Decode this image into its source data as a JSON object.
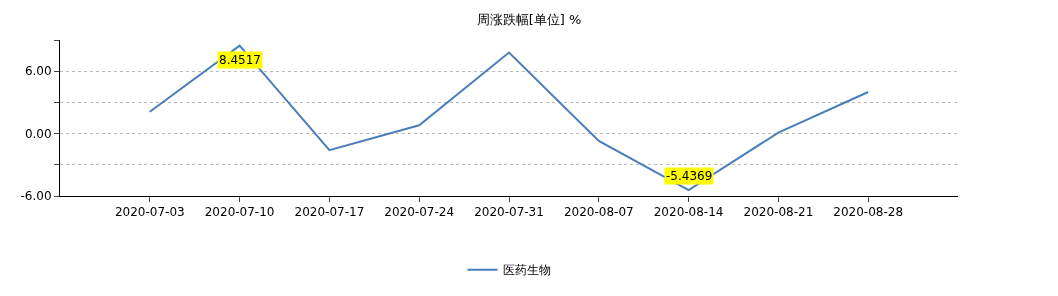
{
  "chart_data": {
    "type": "line",
    "title": "周涨跌幅[单位] %",
    "categories": [
      "2020-07-03",
      "2020-07-10",
      "2020-07-17",
      "2020-07-24",
      "2020-07-31",
      "2020-08-07",
      "2020-08-14",
      "2020-08-21",
      "2020-08-28"
    ],
    "series": [
      {
        "name": "医药生物",
        "color": "#4a7ebb",
        "values": [
          2.1,
          8.4517,
          -1.6,
          0.8,
          7.8,
          -0.7,
          -5.4369,
          0.1,
          4.0
        ],
        "value_labels": [
          null,
          "8.4517",
          null,
          null,
          null,
          null,
          "-5.4369",
          null,
          null
        ]
      }
    ],
    "ylim": [
      -6,
      9
    ],
    "yticks": [
      {
        "value": -6,
        "label": "-6.00"
      },
      {
        "value": -3,
        "label": null
      },
      {
        "value": 0,
        "label": "0.00"
      },
      {
        "value": 3,
        "label": null
      },
      {
        "value": 6,
        "label": "6.00"
      },
      {
        "value": 9,
        "label": null
      }
    ],
    "grid": "y",
    "legend": "bottom",
    "marker": "none",
    "line_style": "solid"
  }
}
